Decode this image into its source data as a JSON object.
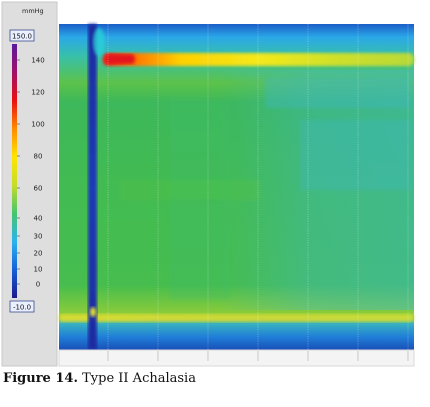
{
  "chart_data": {
    "type": "heatmap",
    "title": "",
    "colorbar": {
      "unit": "mmHg",
      "max_label": "150.0",
      "min_label": "-10.0",
      "range": [
        -10,
        150
      ],
      "ticks": [
        140,
        120,
        100,
        80,
        60,
        40,
        30,
        20,
        10,
        0
      ],
      "colors": [
        "#1c1a8c",
        "#1560d8",
        "#2bb3ee",
        "#44c56e",
        "#c6dc2a",
        "#ffe600",
        "#ff8a00",
        "#e81010",
        "#a0106a",
        "#5a1a9a"
      ]
    },
    "plot": {
      "background_value": 35,
      "time_divisions": 7,
      "features": [
        {
          "kind": "proximal_band",
          "pressure": 90
        },
        {
          "kind": "swallow_artifact",
          "pressure": 0
        },
        {
          "kind": "panesophageal_pressurization",
          "pressure": 38
        },
        {
          "kind": "distal_band",
          "pressure": 52
        }
      ]
    }
  },
  "caption": {
    "label": "Figure 14.",
    "text": " Type II Achalasia"
  }
}
